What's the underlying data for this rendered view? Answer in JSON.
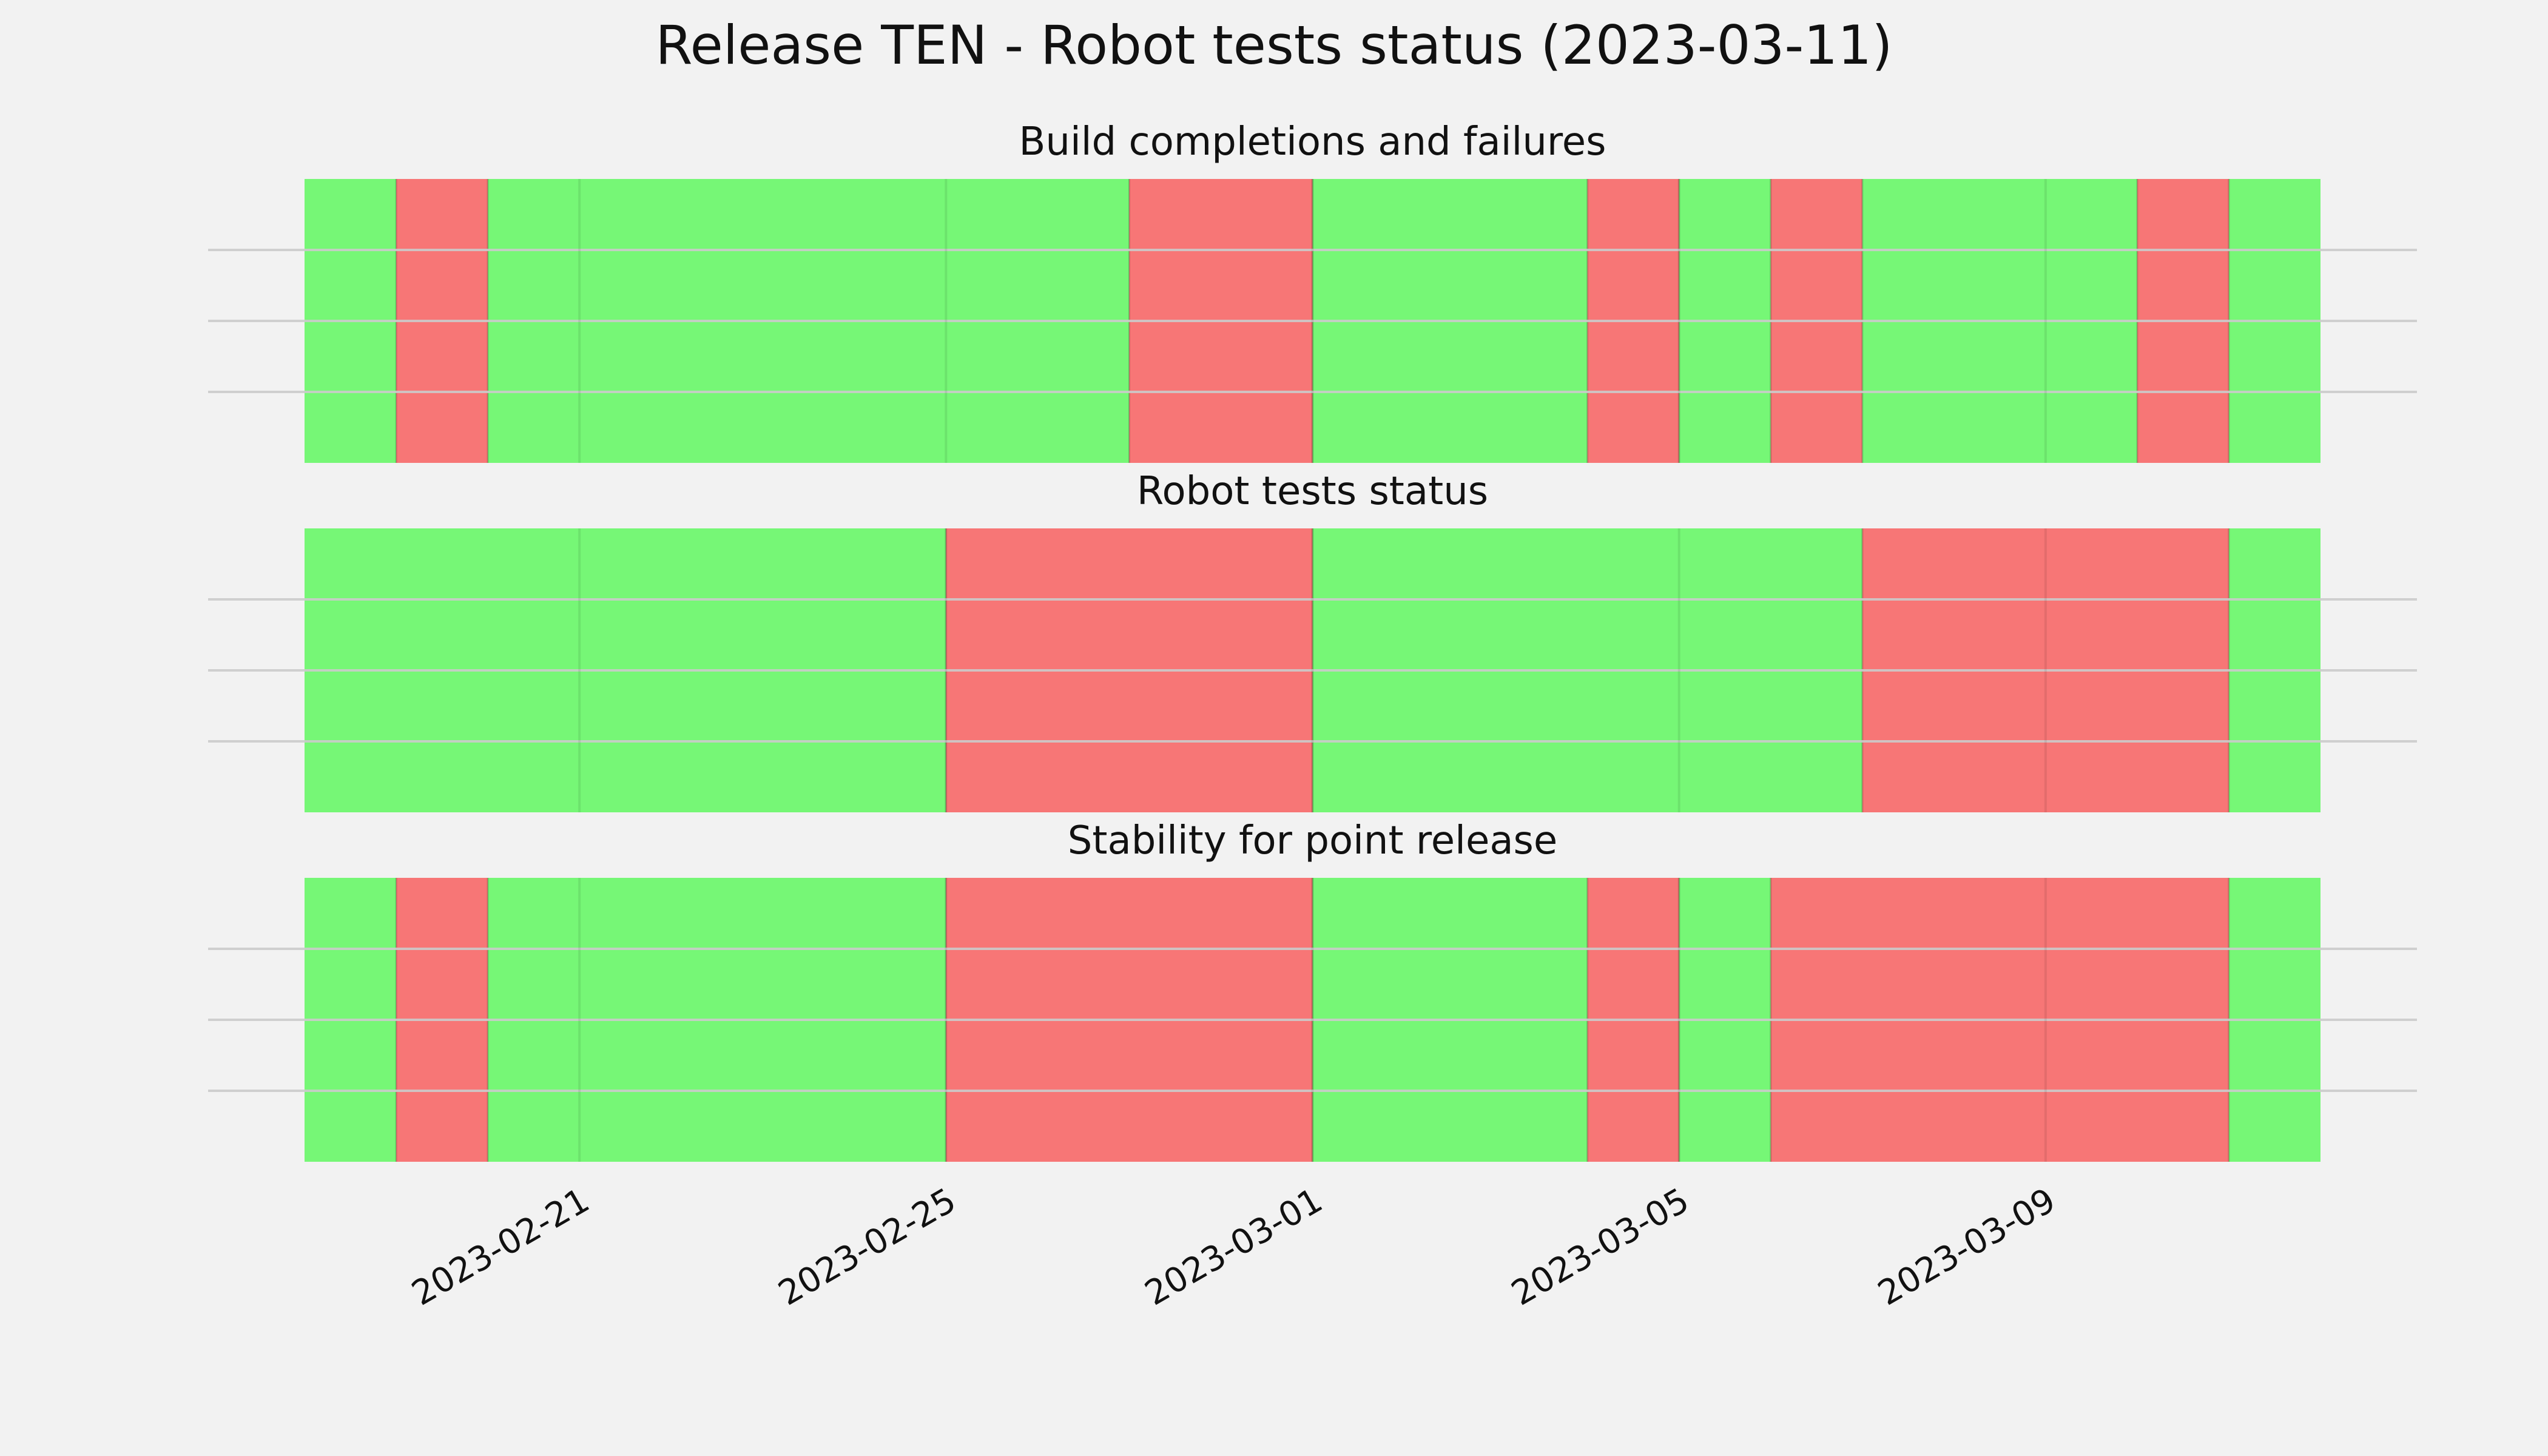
{
  "chart_data": {
    "type": "timeline",
    "title": "Release TEN - Robot tests status (2023-03-11)",
    "x_axis": {
      "type": "date",
      "range": [
        "2023-02-18",
        "2023-03-12"
      ],
      "ticks": [
        "2023-02-21",
        "2023-02-25",
        "2023-03-01",
        "2023-03-05",
        "2023-03-09"
      ]
    },
    "y_axis": {
      "tick_labels": "none",
      "grid": true
    },
    "colors": {
      "pass": "#76f776",
      "fail": "#f77676",
      "background": "#f2f2f2",
      "grid": "#cbcbcb"
    },
    "panels": [
      {
        "title": "Build completions and failures",
        "segments": [
          {
            "start": "2023-02-18",
            "end": "2023-02-19",
            "status": "pass"
          },
          {
            "start": "2023-02-19",
            "end": "2023-02-20",
            "status": "fail"
          },
          {
            "start": "2023-02-20",
            "end": "2023-02-27",
            "status": "pass"
          },
          {
            "start": "2023-02-27",
            "end": "2023-03-01",
            "status": "fail"
          },
          {
            "start": "2023-03-01",
            "end": "2023-03-04",
            "status": "pass"
          },
          {
            "start": "2023-03-04",
            "end": "2023-03-05",
            "status": "fail"
          },
          {
            "start": "2023-03-05",
            "end": "2023-03-06",
            "status": "pass"
          },
          {
            "start": "2023-03-06",
            "end": "2023-03-07",
            "status": "fail"
          },
          {
            "start": "2023-03-07",
            "end": "2023-03-10",
            "status": "pass"
          },
          {
            "start": "2023-03-10",
            "end": "2023-03-11",
            "status": "fail"
          },
          {
            "start": "2023-03-11",
            "end": "2023-03-12",
            "status": "pass"
          }
        ]
      },
      {
        "title": "Robot tests status",
        "segments": [
          {
            "start": "2023-02-18",
            "end": "2023-02-25",
            "status": "pass"
          },
          {
            "start": "2023-02-25",
            "end": "2023-03-01",
            "status": "fail"
          },
          {
            "start": "2023-03-01",
            "end": "2023-03-07",
            "status": "pass"
          },
          {
            "start": "2023-03-07",
            "end": "2023-03-11",
            "status": "fail"
          },
          {
            "start": "2023-03-11",
            "end": "2023-03-12",
            "status": "pass"
          }
        ]
      },
      {
        "title": "Stability for point release",
        "segments": [
          {
            "start": "2023-02-18",
            "end": "2023-02-19",
            "status": "pass"
          },
          {
            "start": "2023-02-19",
            "end": "2023-02-20",
            "status": "fail"
          },
          {
            "start": "2023-02-20",
            "end": "2023-02-25",
            "status": "pass"
          },
          {
            "start": "2023-02-25",
            "end": "2023-03-01",
            "status": "fail"
          },
          {
            "start": "2023-03-01",
            "end": "2023-03-04",
            "status": "pass"
          },
          {
            "start": "2023-03-04",
            "end": "2023-03-05",
            "status": "fail"
          },
          {
            "start": "2023-03-05",
            "end": "2023-03-06",
            "status": "pass"
          },
          {
            "start": "2023-03-06",
            "end": "2023-03-11",
            "status": "fail"
          },
          {
            "start": "2023-03-11",
            "end": "2023-03-12",
            "status": "pass"
          }
        ]
      }
    ]
  }
}
